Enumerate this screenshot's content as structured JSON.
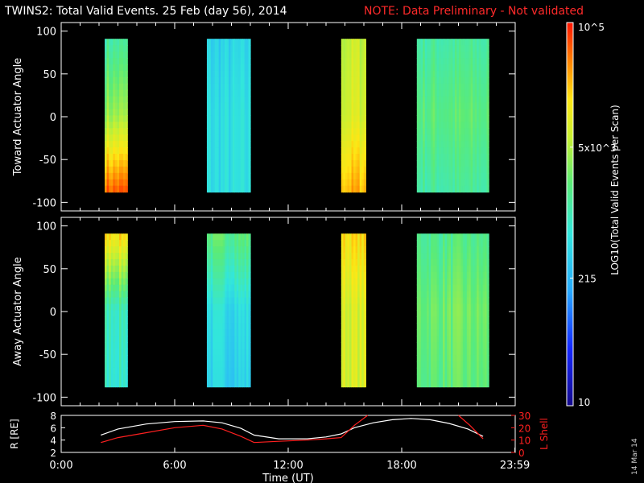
{
  "title": "TWINS2: Total Valid Events. 25 Feb (day  56), 2014",
  "note": "NOTE: Data Preliminary - Not validated",
  "stamp": "14 Mar 14",
  "colors": {
    "background": "#000000",
    "axes": "#ffffff",
    "note": "#ff2a2a",
    "lshell": "#ff2020",
    "radius": "#ffffff"
  },
  "chart_data": [
    {
      "type": "heatmap",
      "panel": "top",
      "ylabel": "Toward Actuator Angle",
      "xlim": [
        0,
        24
      ],
      "ylim": [
        -110,
        110
      ],
      "yticks": [
        "100",
        "50",
        "0",
        "-50",
        "-100"
      ],
      "data_extent_angle": [
        -88,
        91
      ],
      "colorbar": {
        "scale": "log",
        "range": [
          10,
          100000
        ],
        "tick_labels": [
          "10",
          "215",
          "5x10^3",
          "10^5"
        ],
        "label": "LOG10(Total Valid Events per Scan)"
      },
      "blocks": [
        {
          "t_start": 2.3,
          "t_end": 3.5,
          "log_counts": {
            "bottom": 4.7,
            "middle": 3.6,
            "top": 3.1
          }
        },
        {
          "t_start": 7.7,
          "t_end": 10.0,
          "log_counts": {
            "bottom": 2.7,
            "middle": 2.7,
            "top": 2.6
          }
        },
        {
          "t_start": 14.8,
          "t_end": 16.1,
          "log_counts": {
            "bottom": 4.4,
            "middle": 3.9,
            "top": 3.8
          }
        },
        {
          "t_start": 18.8,
          "t_end": 22.6,
          "log_counts": {
            "bottom": 3.1,
            "middle": 3.3,
            "top": 3.1
          }
        }
      ]
    },
    {
      "type": "heatmap",
      "panel": "bottom",
      "ylabel": "Away Actuator Angle",
      "xlim": [
        0,
        24
      ],
      "ylim": [
        -110,
        110
      ],
      "yticks": [
        "100",
        "50",
        "0",
        "-50",
        "-100"
      ],
      "data_extent_angle": [
        -88,
        91
      ],
      "blocks": [
        {
          "t_start": 2.3,
          "t_end": 3.5,
          "log_counts": {
            "bottom": 2.9,
            "middle": 3.0,
            "top": 4.2
          }
        },
        {
          "t_start": 7.7,
          "t_end": 10.0,
          "log_counts": {
            "bottom": 2.6,
            "middle": 2.7,
            "top": 3.3
          }
        },
        {
          "t_start": 14.8,
          "t_end": 16.1,
          "log_counts": {
            "bottom": 3.9,
            "middle": 3.9,
            "top": 4.2
          }
        },
        {
          "t_start": 18.8,
          "t_end": 22.6,
          "log_counts": {
            "bottom": 3.3,
            "middle": 3.4,
            "top": 3.2
          }
        }
      ]
    },
    {
      "type": "line",
      "panel": "orbit",
      "xlabel": "Time (UT)",
      "xticks": [
        "0:00",
        "6:00",
        "12:00",
        "18:00",
        "23:59"
      ],
      "ylabel_left": "R [RE]",
      "ylabel_right": "L Shell",
      "ylim_left": [
        2,
        8
      ],
      "ylim_right": [
        0,
        30
      ],
      "yticks_left": [
        "2",
        "4",
        "6",
        "8"
      ],
      "yticks_right": [
        "0",
        "10",
        "20",
        "30"
      ],
      "series": [
        {
          "axis": "left",
          "color": "#ffffff",
          "x": [
            2.1,
            3.0,
            4.5,
            6.0,
            7.5,
            8.5,
            9.5,
            10.2,
            11.5,
            13.0,
            14.0,
            14.8,
            15.5,
            16.5,
            17.5,
            18.5,
            19.5,
            20.5,
            21.5,
            22.3
          ],
          "y": [
            4.8,
            5.8,
            6.6,
            7.0,
            7.1,
            6.8,
            5.9,
            4.8,
            4.2,
            4.2,
            4.5,
            5.0,
            6.0,
            6.8,
            7.3,
            7.5,
            7.3,
            6.7,
            5.8,
            4.6
          ]
        },
        {
          "axis": "right",
          "color": "#ff2020",
          "x": [
            2.1,
            3.0,
            4.5,
            6.0,
            7.5,
            8.5,
            9.5,
            10.2,
            11.5,
            13.0,
            14.0,
            14.8,
            15.5,
            16.2
          ],
          "y": [
            8,
            12,
            16,
            20,
            22,
            19,
            13,
            8,
            9,
            10,
            11,
            12,
            22,
            30
          ]
        },
        {
          "axis": "right",
          "color": "#ff2020",
          "x": [
            21.0,
            21.6,
            22.3
          ],
          "y": [
            30,
            22,
            11
          ]
        }
      ]
    }
  ]
}
